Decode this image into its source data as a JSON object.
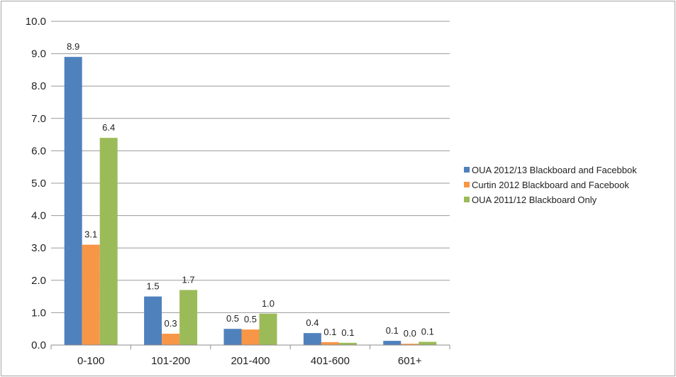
{
  "chart_data": {
    "type": "bar",
    "title": "",
    "xlabel": "",
    "ylabel": "",
    "categories": [
      "0-100",
      "101-200",
      "201-400",
      "401-600",
      "601+"
    ],
    "ylim": [
      0,
      10
    ],
    "y_ticks": [
      "0.0",
      "1.0",
      "2.0",
      "3.0",
      "4.0",
      "5.0",
      "6.0",
      "7.0",
      "8.0",
      "9.0",
      "10.0"
    ],
    "grid": true,
    "legend_position": "right",
    "series": [
      {
        "name": "OUA 2012/13 Blackboard and Facebbok",
        "color": "#4f81bd",
        "values": [
          8.9,
          1.5,
          0.5,
          0.37,
          0.13
        ],
        "labels": [
          "8.9",
          "1.5",
          "0.5",
          "0.4",
          "0.1"
        ]
      },
      {
        "name": "Curtin 2012 Blackboard and Facebook",
        "color": "#f79646",
        "values": [
          3.1,
          0.35,
          0.48,
          0.09,
          0.04
        ],
        "labels": [
          "3.1",
          "0.3",
          "0.5",
          "0.1",
          "0.0"
        ]
      },
      {
        "name": "OUA 2011/12 Blackboard Only",
        "color": "#9bbb59",
        "values": [
          6.4,
          1.7,
          0.97,
          0.07,
          0.1
        ],
        "labels": [
          "6.4",
          "1.7",
          "1.0",
          "0.1",
          "0.1"
        ]
      }
    ]
  }
}
